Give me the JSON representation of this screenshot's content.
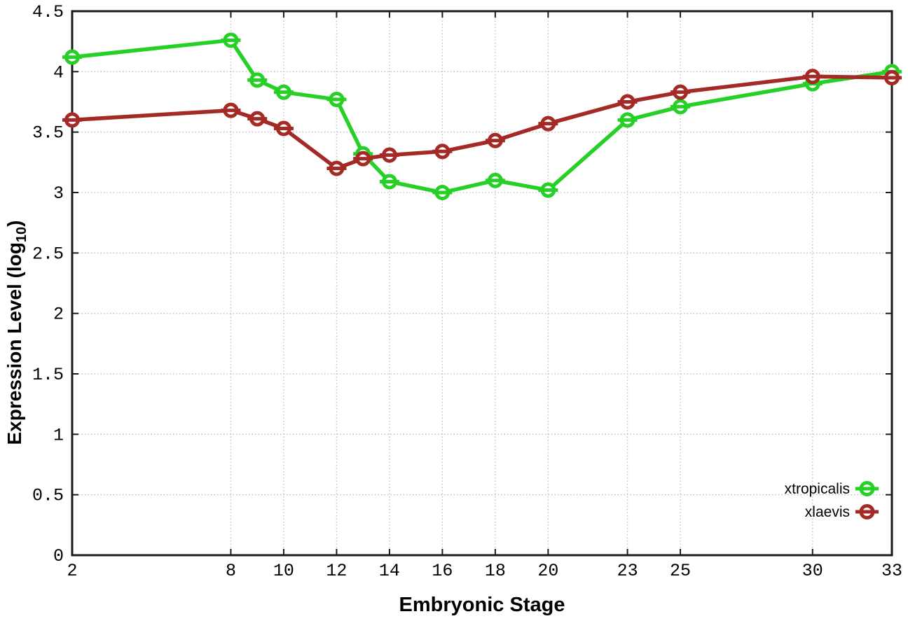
{
  "chart_data": {
    "type": "line",
    "title": "",
    "xlabel": "Embryonic Stage",
    "ylabel": "Expression Level (log10)",
    "ylabel_parts": {
      "main": "Expression Level (log",
      "sub": "10",
      "end": ")"
    },
    "x": [
      2,
      8,
      9,
      10,
      12,
      13,
      14,
      16,
      18,
      20,
      23,
      25,
      30,
      33
    ],
    "x_ticks": [
      2,
      8,
      10,
      12,
      14,
      16,
      18,
      20,
      23,
      25,
      30,
      33
    ],
    "y_ticks": [
      0,
      0.5,
      1,
      1.5,
      2,
      2.5,
      3,
      3.5,
      4,
      4.5
    ],
    "xlim": [
      2,
      33
    ],
    "ylim": [
      0,
      4.5
    ],
    "grid": true,
    "legend_position": "bottom-right",
    "series": [
      {
        "name": "xtropicalis",
        "color": "#26d026",
        "values": [
          4.12,
          4.26,
          3.93,
          3.83,
          3.77,
          3.32,
          3.09,
          3.0,
          3.1,
          3.02,
          3.6,
          3.71,
          3.9,
          4.0
        ]
      },
      {
        "name": "xlaevis",
        "color": "#a42a26",
        "values": [
          3.6,
          3.68,
          3.61,
          3.53,
          3.2,
          3.28,
          3.31,
          3.34,
          3.43,
          3.57,
          3.75,
          3.83,
          3.96,
          3.95
        ]
      }
    ],
    "colors": {
      "background": "#ffffff",
      "border": "#1a1a1a",
      "grid": "#bdbdbd",
      "text": "#000000"
    }
  }
}
